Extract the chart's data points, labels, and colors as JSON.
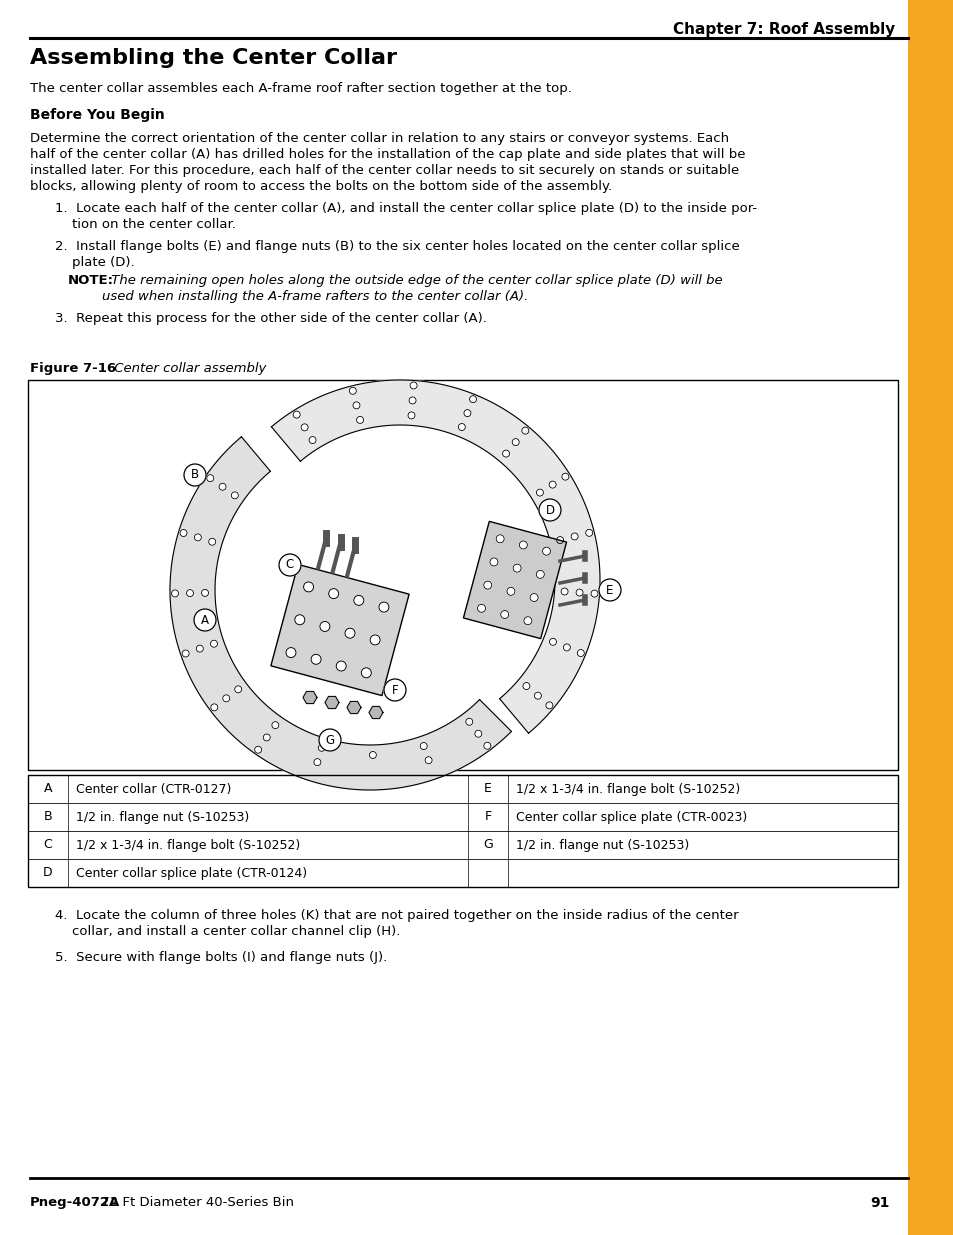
{
  "page_title": "Chapter 7: Roof Assembly",
  "section_title": "Assembling the Center Collar",
  "intro_text": "The center collar assembles each A-frame roof rafter section together at the top.",
  "before_you_begin": "Before You Begin",
  "para1_lines": [
    "Determine the correct orientation of the center collar in relation to any stairs or conveyor systems. Each",
    "half of the center collar (A) has drilled holes for the installation of the cap plate and side plates that will be",
    "installed later. For this procedure, each half of the center collar needs to sit securely on stands or suitable",
    "blocks, allowing plenty of room to access the bolts on the bottom side of the assembly."
  ],
  "step1_line1": "1.  Locate each half of the center collar (A), and install the center collar splice plate (D) to the inside por-",
  "step1_line2": "    tion on the center collar.",
  "step2_line1": "2.  Install flange bolts (E) and flange nuts (B) to the six center holes located on the center collar splice",
  "step2_line2": "    plate (D).",
  "note_label": "NOTE:",
  "note_line1": " The remaining open holes along the outside edge of the center collar splice plate (D) will be",
  "note_line2": "        used when installing the A-frame rafters to the center collar (A).",
  "step3": "3.  Repeat this process for the other side of the center collar (A).",
  "figure_label": "Figure 7-16",
  "figure_caption": " Center collar assembly",
  "step4_line1": "4.  Locate the column of three holes (K) that are not paired together on the inside radius of the center",
  "step4_line2": "    collar, and install a center collar channel clip (H).",
  "step5": "5.  Secure with flange bolts (I) and flange nuts (J).",
  "footer_bold": "Pneg-4072A",
  "footer_text": " 72 Ft Diameter 40-Series Bin",
  "page_number": "91",
  "orange_color": "#F5A623",
  "table_data": [
    [
      "A",
      "Center collar (CTR-0127)",
      "E",
      "1/2 x 1-3/4 in. flange bolt (S-10252)"
    ],
    [
      "B",
      "1/2 in. flange nut (S-10253)",
      "F",
      "Center collar splice plate (CTR-0023)"
    ],
    [
      "C",
      "1/2 x 1-3/4 in. flange bolt (S-10252)",
      "G",
      "1/2 in. flange nut (S-10253)"
    ],
    [
      "D",
      "Center collar splice plate (CTR-0124)",
      "",
      ""
    ]
  ]
}
